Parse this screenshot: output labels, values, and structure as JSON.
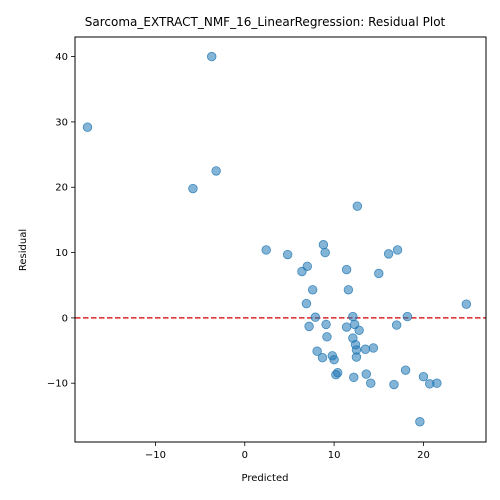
{
  "chart_data": {
    "type": "scatter",
    "title": "Sarcoma_EXTRACT_NMF_16_LinearRegression: Residual Plot",
    "xlabel": "Predicted",
    "ylabel": "Residual",
    "xlim": [
      -19,
      27
    ],
    "ylim": [
      -19,
      43
    ],
    "xticks": [
      -10,
      0,
      10,
      20
    ],
    "yticks": [
      -10,
      0,
      10,
      20,
      30,
      40
    ],
    "xtick_labels": [
      "−10",
      "0",
      "10",
      "20"
    ],
    "ytick_labels": [
      "−10",
      "0",
      "10",
      "20",
      "30",
      "40"
    ],
    "grid": false,
    "reference_line": {
      "y": 0,
      "style": "dashed",
      "color": "#d62728"
    },
    "point_color": "#1f77b4",
    "points": [
      {
        "x": -17.6,
        "y": 29.2
      },
      {
        "x": -3.7,
        "y": 40.0
      },
      {
        "x": -3.2,
        "y": 22.5
      },
      {
        "x": -5.8,
        "y": 19.8
      },
      {
        "x": 12.6,
        "y": 17.1
      },
      {
        "x": 2.4,
        "y": 10.4
      },
      {
        "x": 4.8,
        "y": 9.7
      },
      {
        "x": 6.4,
        "y": 7.1
      },
      {
        "x": 7.0,
        "y": 7.9
      },
      {
        "x": 8.8,
        "y": 11.2
      },
      {
        "x": 9.0,
        "y": 10.0
      },
      {
        "x": 11.4,
        "y": 7.4
      },
      {
        "x": 16.1,
        "y": 9.8
      },
      {
        "x": 17.1,
        "y": 10.4
      },
      {
        "x": 15.0,
        "y": 6.8
      },
      {
        "x": 7.6,
        "y": 4.3
      },
      {
        "x": 11.6,
        "y": 4.3
      },
      {
        "x": 6.9,
        "y": 2.2
      },
      {
        "x": 24.8,
        "y": 2.1
      },
      {
        "x": 7.9,
        "y": 0.1
      },
      {
        "x": 12.1,
        "y": 0.2
      },
      {
        "x": 18.2,
        "y": 0.2
      },
      {
        "x": 7.2,
        "y": -1.3
      },
      {
        "x": 9.1,
        "y": -1.0
      },
      {
        "x": 11.4,
        "y": -1.4
      },
      {
        "x": 12.3,
        "y": -1.0
      },
      {
        "x": 12.8,
        "y": -1.9
      },
      {
        "x": 17.0,
        "y": -1.1
      },
      {
        "x": 9.2,
        "y": -2.9
      },
      {
        "x": 12.1,
        "y": -3.1
      },
      {
        "x": 12.4,
        "y": -4.1
      },
      {
        "x": 12.5,
        "y": -4.9
      },
      {
        "x": 13.5,
        "y": -4.8
      },
      {
        "x": 14.4,
        "y": -4.6
      },
      {
        "x": 8.1,
        "y": -5.1
      },
      {
        "x": 9.8,
        "y": -5.8
      },
      {
        "x": 8.7,
        "y": -6.1
      },
      {
        "x": 10.0,
        "y": -6.4
      },
      {
        "x": 12.5,
        "y": -6.0
      },
      {
        "x": 10.4,
        "y": -8.4
      },
      {
        "x": 10.2,
        "y": -8.7
      },
      {
        "x": 13.6,
        "y": -8.6
      },
      {
        "x": 12.2,
        "y": -9.1
      },
      {
        "x": 18.0,
        "y": -8.0
      },
      {
        "x": 20.0,
        "y": -9.0
      },
      {
        "x": 14.1,
        "y": -10.0
      },
      {
        "x": 16.7,
        "y": -10.2
      },
      {
        "x": 20.7,
        "y": -10.1
      },
      {
        "x": 21.5,
        "y": -10.0
      },
      {
        "x": 19.6,
        "y": -15.9
      }
    ]
  }
}
